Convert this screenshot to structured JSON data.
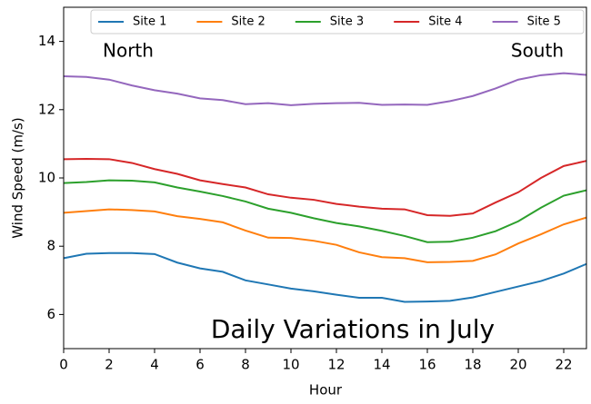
{
  "chart_data": {
    "type": "line",
    "xlabel": "Hour",
    "ylabel": "Wind Speed (m/s)",
    "annotations": [
      "North",
      "South",
      "Daily Variations in July"
    ],
    "x": [
      0,
      1,
      2,
      3,
      4,
      5,
      6,
      7,
      8,
      9,
      10,
      11,
      12,
      13,
      14,
      15,
      16,
      17,
      18,
      19,
      20,
      21,
      22,
      23
    ],
    "xlim": [
      0,
      23
    ],
    "xticks": [
      0,
      2,
      4,
      6,
      8,
      10,
      12,
      14,
      16,
      18,
      20,
      22
    ],
    "ylim": [
      5,
      15
    ],
    "yticks": [
      6,
      8,
      10,
      12,
      14
    ],
    "grid": false,
    "legend": "top",
    "series": [
      {
        "name": "Site 1",
        "color": "#1f77b4",
        "values": [
          7.65,
          7.78,
          7.8,
          7.8,
          7.77,
          7.52,
          7.35,
          7.25,
          7.0,
          6.88,
          6.76,
          6.68,
          6.58,
          6.49,
          6.49,
          6.37,
          6.38,
          6.4,
          6.5,
          6.66,
          6.82,
          6.98,
          7.2,
          7.48
        ]
      },
      {
        "name": "Site 2",
        "color": "#ff7f0e",
        "values": [
          8.98,
          9.03,
          9.08,
          9.06,
          9.02,
          8.88,
          8.8,
          8.7,
          8.46,
          8.25,
          8.24,
          8.16,
          8.04,
          7.82,
          7.68,
          7.65,
          7.53,
          7.54,
          7.57,
          7.76,
          8.08,
          8.35,
          8.64,
          8.84
        ]
      },
      {
        "name": "Site 3",
        "color": "#2ca02c",
        "values": [
          9.85,
          9.88,
          9.93,
          9.92,
          9.87,
          9.72,
          9.6,
          9.47,
          9.31,
          9.1,
          8.98,
          8.82,
          8.68,
          8.58,
          8.45,
          8.3,
          8.12,
          8.13,
          8.25,
          8.44,
          8.73,
          9.13,
          9.48,
          9.64
        ]
      },
      {
        "name": "Site 4",
        "color": "#d62728",
        "values": [
          10.55,
          10.56,
          10.55,
          10.44,
          10.26,
          10.12,
          9.93,
          9.82,
          9.72,
          9.52,
          9.42,
          9.36,
          9.24,
          9.16,
          9.1,
          9.08,
          8.91,
          8.89,
          8.96,
          9.28,
          9.58,
          10.0,
          10.35,
          10.5
        ]
      },
      {
        "name": "Site 5",
        "color": "#9467bd",
        "values": [
          12.98,
          12.96,
          12.88,
          12.71,
          12.57,
          12.47,
          12.33,
          12.28,
          12.16,
          12.19,
          12.13,
          12.17,
          12.19,
          12.2,
          12.14,
          12.15,
          12.14,
          12.25,
          12.4,
          12.62,
          12.88,
          13.01,
          13.07,
          13.02
        ]
      }
    ]
  }
}
